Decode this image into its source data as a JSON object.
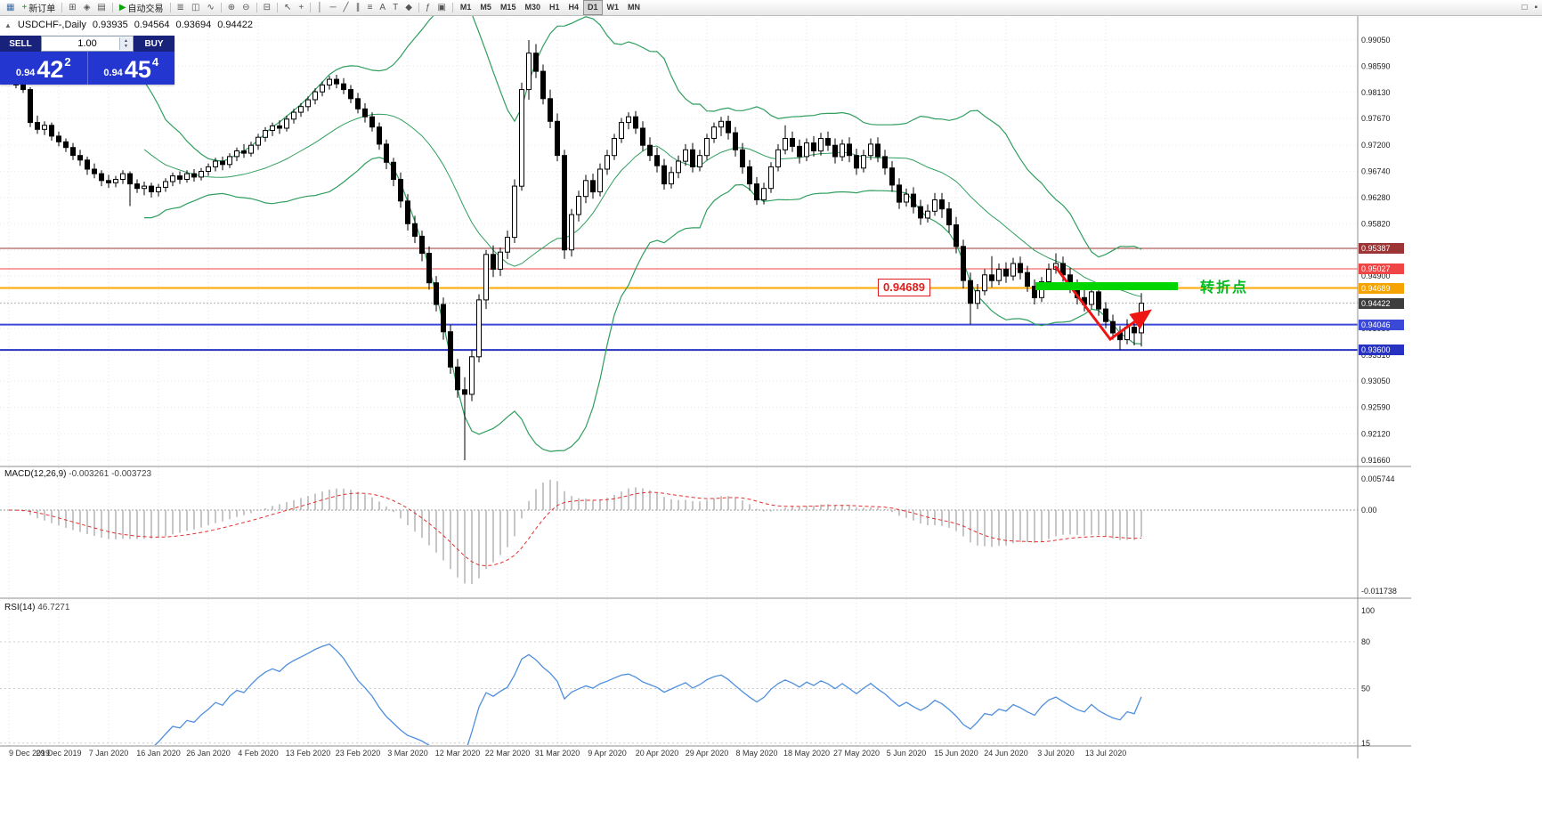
{
  "toolbar": {
    "items": [
      {
        "name": "app-icon",
        "glyph": "▦",
        "glyph_color": "#3a6ea5",
        "type": "icon"
      },
      {
        "name": "new-order-button",
        "glyph": "+",
        "glyph_color": "#0ca00c",
        "label": "新订单",
        "type": "button"
      },
      {
        "type": "sep"
      },
      {
        "name": "charts-grid-button",
        "glyph": "⊞",
        "type": "button"
      },
      {
        "name": "navigator-button",
        "glyph": "◈",
        "type": "button"
      },
      {
        "name": "terminal-button",
        "glyph": "▤",
        "type": "button"
      },
      {
        "type": "sep"
      },
      {
        "name": "auto-trading-button",
        "glyph": "▶",
        "glyph_color": "#0ca00c",
        "label": "自动交易",
        "type": "button"
      },
      {
        "type": "sep"
      },
      {
        "name": "bar-chart-button",
        "glyph": "≣",
        "type": "button"
      },
      {
        "name": "candlestick-chart-button",
        "glyph": "◫",
        "type": "button"
      },
      {
        "name": "line-chart-button",
        "glyph": "∿",
        "type": "button"
      },
      {
        "type": "sep"
      },
      {
        "name": "zoom-in-button",
        "glyph": "⊕",
        "type": "button"
      },
      {
        "name": "zoom-out-button",
        "glyph": "⊖",
        "type": "button"
      },
      {
        "type": "sep"
      },
      {
        "name": "tile-windows-button",
        "glyph": "⊟",
        "type": "button"
      },
      {
        "type": "sep"
      },
      {
        "name": "cursor-button",
        "glyph": "↖",
        "type": "button"
      },
      {
        "name": "crosshair-button",
        "glyph": "+",
        "type": "button"
      },
      {
        "type": "sep"
      },
      {
        "name": "vertical-line-button",
        "glyph": "│",
        "type": "button"
      },
      {
        "name": "horizontal-line-button",
        "glyph": "─",
        "type": "button"
      },
      {
        "name": "trendline-button",
        "glyph": "╱",
        "type": "button"
      },
      {
        "name": "channel-button",
        "glyph": "∥",
        "type": "button"
      },
      {
        "name": "fibonacci-button",
        "glyph": "≡",
        "type": "button"
      },
      {
        "name": "text-button",
        "glyph": "A",
        "type": "button"
      },
      {
        "name": "label-button",
        "glyph": "T",
        "type": "button"
      },
      {
        "name": "shapes-button",
        "glyph": "◆",
        "type": "button"
      },
      {
        "type": "sep"
      },
      {
        "name": "indicators-button",
        "glyph": "ƒ",
        "type": "button"
      },
      {
        "name": "templates-button",
        "glyph": "▣",
        "type": "button"
      },
      {
        "type": "sep"
      }
    ],
    "timeframes": [
      "M1",
      "M5",
      "M15",
      "M30",
      "H1",
      "H4",
      "D1",
      "W1",
      "MN"
    ],
    "active_timeframe": "D1",
    "right_items": [
      {
        "name": "window-list-button",
        "glyph": "□"
      },
      {
        "name": "toggle-panel-button",
        "glyph": "▪"
      }
    ]
  },
  "symbol_info": {
    "collapse_icon": "▲",
    "symbol_period": "USDCHF-,Daily",
    "open": "0.93935",
    "high": "0.94564",
    "low": "0.93694",
    "close": "0.94422"
  },
  "trade_panel": {
    "sell_label": "SELL",
    "buy_label": "BUY",
    "volume": "1.00",
    "spin_up": "▲",
    "spin_down": "▼",
    "sell_price_prefix": "0.94",
    "sell_price_big": "42",
    "sell_price_sup": "2",
    "buy_price_prefix": "0.94",
    "buy_price_big": "45",
    "buy_price_sup": "4"
  },
  "indicator_labels": {
    "macd_name": "MACD(12,26,9)",
    "macd_values": "-0.003261 -0.003723",
    "rsi_name": "RSI(14)",
    "rsi_value": "46.7271"
  },
  "annotations": {
    "level_label": "0.94689",
    "turning_point_label": "转折点"
  },
  "chart_data": {
    "type": "candlestick",
    "symbol": "USDCHF-",
    "period": "Daily",
    "colors": {
      "bollinger": "#2f9e5e",
      "bull": "#ffffff",
      "bear": "#000000",
      "macd_hist": "#b8b8b8",
      "macd_signal": "#e23030",
      "rsi": "#4f8fde",
      "arrow": "#ee1515",
      "green_zone": "#00d500",
      "green_zone_text": "#00bb22"
    },
    "price_ticks": [
      "0.99050",
      "0.98590",
      "0.98130",
      "0.97670",
      "0.97200",
      "0.96740",
      "0.96280",
      "0.95820",
      "0.95360",
      "0.94900",
      "0.94440",
      "0.93980",
      "0.93510",
      "0.93050",
      "0.92590",
      "0.92120",
      "0.91660"
    ],
    "macd_axis": [
      "0.005744",
      "0.00",
      "-0.011738"
    ],
    "rsi_axis": [
      "100",
      "80",
      "50",
      "15"
    ],
    "rsi_levels": [
      80,
      50,
      15
    ],
    "date_ticks": [
      "9 Dec 2019",
      "29 Dec 2019",
      "7 Jan 2020",
      "16 Jan 2020",
      "26 Jan 2020",
      "4 Feb 2020",
      "13 Feb 2020",
      "23 Feb 2020",
      "3 Mar 2020",
      "12 Mar 2020",
      "22 Mar 2020",
      "31 Mar 2020",
      "9 Apr 2020",
      "20 Apr 2020",
      "29 Apr 2020",
      "8 May 2020",
      "18 May 2020",
      "27 May 2020",
      "5 Jun 2020",
      "15 Jun 2020",
      "24 Jun 2020",
      "3 Jul 2020",
      "13 Jul 2020"
    ],
    "hlines": [
      {
        "name": "resistance-level-1",
        "price": 0.95387,
        "label": "0.95387",
        "color": "#9c3535",
        "width": 1
      },
      {
        "name": "resistance-level-2",
        "price": 0.95027,
        "label": "0.95027",
        "color": "#f04545",
        "width": 1
      },
      {
        "name": "key-level",
        "price": 0.94689,
        "label": "0.94689",
        "color": "#f5a300",
        "line_color": "#ffaa00",
        "width": 2
      },
      {
        "name": "current-price",
        "price": 0.94422,
        "label": "0.94422",
        "color": "#3d3d3d",
        "line_color": "#b4b4b4",
        "width": 1,
        "dash": "2,2"
      },
      {
        "name": "support-level-1",
        "price": 0.94046,
        "label": "0.94046",
        "color": "#3b49d6",
        "width": 2
      },
      {
        "name": "support-level-2",
        "price": 0.936,
        "label": "0.93600",
        "color": "#2733c0",
        "width": 2
      }
    ],
    "bollinger": {
      "period": 20,
      "deviation": 2
    },
    "candles": [
      [
        0.9838,
        0.9848,
        0.9828,
        0.9835
      ],
      [
        0.9835,
        0.9842,
        0.982,
        0.9826
      ],
      [
        0.9826,
        0.9835,
        0.9812,
        0.9818
      ],
      [
        0.9818,
        0.9822,
        0.9752,
        0.976
      ],
      [
        0.976,
        0.9772,
        0.974,
        0.9748
      ],
      [
        0.9748,
        0.9762,
        0.9738,
        0.9755
      ],
      [
        0.9755,
        0.976,
        0.9728,
        0.9736
      ],
      [
        0.9736,
        0.9744,
        0.9718,
        0.9726
      ],
      [
        0.9726,
        0.9732,
        0.9708,
        0.9716
      ],
      [
        0.9716,
        0.9724,
        0.9694,
        0.9702
      ],
      [
        0.9702,
        0.9712,
        0.9684,
        0.9694
      ],
      [
        0.9694,
        0.97,
        0.9668,
        0.9678
      ],
      [
        0.9678,
        0.9688,
        0.9662,
        0.967
      ],
      [
        0.967,
        0.9676,
        0.9648,
        0.9658
      ],
      [
        0.9658,
        0.9668,
        0.9645,
        0.9654
      ],
      [
        0.9654,
        0.9666,
        0.9646,
        0.966
      ],
      [
        0.966,
        0.9676,
        0.9652,
        0.967
      ],
      [
        0.967,
        0.9674,
        0.9613,
        0.9652
      ],
      [
        0.9652,
        0.966,
        0.9636,
        0.9644
      ],
      [
        0.9644,
        0.9656,
        0.9632,
        0.9648
      ],
      [
        0.9648,
        0.9654,
        0.9628,
        0.9638
      ],
      [
        0.9638,
        0.9652,
        0.963,
        0.9646
      ],
      [
        0.9646,
        0.9662,
        0.9638,
        0.9656
      ],
      [
        0.9656,
        0.9672,
        0.9648,
        0.9666
      ],
      [
        0.9666,
        0.9674,
        0.9652,
        0.966
      ],
      [
        0.966,
        0.9676,
        0.9654,
        0.967
      ],
      [
        0.967,
        0.9678,
        0.9656,
        0.9664
      ],
      [
        0.9664,
        0.968,
        0.9658,
        0.9674
      ],
      [
        0.9674,
        0.9688,
        0.9666,
        0.9682
      ],
      [
        0.9682,
        0.9698,
        0.9674,
        0.9692
      ],
      [
        0.9692,
        0.97,
        0.9676,
        0.9686
      ],
      [
        0.9686,
        0.9706,
        0.968,
        0.97
      ],
      [
        0.97,
        0.9716,
        0.9692,
        0.971
      ],
      [
        0.971,
        0.9722,
        0.9698,
        0.9706
      ],
      [
        0.9706,
        0.9726,
        0.97,
        0.972
      ],
      [
        0.972,
        0.974,
        0.9712,
        0.9734
      ],
      [
        0.9734,
        0.9752,
        0.9726,
        0.9746
      ],
      [
        0.9746,
        0.976,
        0.9736,
        0.9754
      ],
      [
        0.9754,
        0.9764,
        0.974,
        0.975
      ],
      [
        0.975,
        0.9772,
        0.9744,
        0.9766
      ],
      [
        0.9766,
        0.9784,
        0.9758,
        0.9778
      ],
      [
        0.9778,
        0.9794,
        0.977,
        0.9788
      ],
      [
        0.9788,
        0.9806,
        0.978,
        0.98
      ],
      [
        0.98,
        0.982,
        0.9792,
        0.9814
      ],
      [
        0.9814,
        0.9832,
        0.9806,
        0.9826
      ],
      [
        0.9826,
        0.9842,
        0.9818,
        0.9836
      ],
      [
        0.9836,
        0.9844,
        0.982,
        0.9828
      ],
      [
        0.9828,
        0.9838,
        0.981,
        0.9818
      ],
      [
        0.9818,
        0.9826,
        0.9794,
        0.9802
      ],
      [
        0.9802,
        0.9812,
        0.9776,
        0.9784
      ],
      [
        0.9784,
        0.9794,
        0.976,
        0.977
      ],
      [
        0.977,
        0.9778,
        0.9744,
        0.9752
      ],
      [
        0.9752,
        0.976,
        0.9712,
        0.9722
      ],
      [
        0.9722,
        0.973,
        0.9678,
        0.969
      ],
      [
        0.969,
        0.9698,
        0.9648,
        0.966
      ],
      [
        0.966,
        0.9672,
        0.961,
        0.9622
      ],
      [
        0.9622,
        0.9634,
        0.957,
        0.9582
      ],
      [
        0.9582,
        0.9596,
        0.9548,
        0.956
      ],
      [
        0.956,
        0.957,
        0.9516,
        0.953
      ],
      [
        0.953,
        0.9542,
        0.9466,
        0.9478
      ],
      [
        0.9478,
        0.949,
        0.9428,
        0.944
      ],
      [
        0.944,
        0.9452,
        0.9378,
        0.9392
      ],
      [
        0.9392,
        0.9404,
        0.9318,
        0.933
      ],
      [
        0.933,
        0.9344,
        0.9276,
        0.929
      ],
      [
        0.929,
        0.9312,
        0.9166,
        0.9282
      ],
      [
        0.9282,
        0.936,
        0.927,
        0.9348
      ],
      [
        0.9348,
        0.9458,
        0.9338,
        0.9448
      ],
      [
        0.9448,
        0.9536,
        0.9432,
        0.9528
      ],
      [
        0.9528,
        0.9544,
        0.9488,
        0.9502
      ],
      [
        0.9502,
        0.954,
        0.949,
        0.9532
      ],
      [
        0.9532,
        0.957,
        0.952,
        0.9558
      ],
      [
        0.9558,
        0.966,
        0.9548,
        0.9648
      ],
      [
        0.9648,
        0.983,
        0.964,
        0.9818
      ],
      [
        0.9818,
        0.9905,
        0.98,
        0.9882
      ],
      [
        0.9882,
        0.9898,
        0.9838,
        0.985
      ],
      [
        0.985,
        0.9862,
        0.9792,
        0.9802
      ],
      [
        0.9802,
        0.9818,
        0.975,
        0.9762
      ],
      [
        0.9762,
        0.9776,
        0.9692,
        0.9702
      ],
      [
        0.9702,
        0.9712,
        0.952,
        0.9536
      ],
      [
        0.9536,
        0.9608,
        0.9524,
        0.9598
      ],
      [
        0.9598,
        0.964,
        0.9586,
        0.963
      ],
      [
        0.963,
        0.9668,
        0.9618,
        0.9658
      ],
      [
        0.9658,
        0.967,
        0.9626,
        0.9638
      ],
      [
        0.9638,
        0.9688,
        0.963,
        0.9678
      ],
      [
        0.9678,
        0.9712,
        0.9668,
        0.9702
      ],
      [
        0.9702,
        0.974,
        0.9694,
        0.9732
      ],
      [
        0.9732,
        0.9768,
        0.9724,
        0.976
      ],
      [
        0.976,
        0.9778,
        0.9748,
        0.977
      ],
      [
        0.977,
        0.978,
        0.974,
        0.975
      ],
      [
        0.975,
        0.9762,
        0.971,
        0.972
      ],
      [
        0.972,
        0.9734,
        0.9692,
        0.9702
      ],
      [
        0.9702,
        0.9716,
        0.9672,
        0.9684
      ],
      [
        0.9684,
        0.9696,
        0.9642,
        0.9652
      ],
      [
        0.9652,
        0.9682,
        0.9644,
        0.9672
      ],
      [
        0.9672,
        0.9702,
        0.9662,
        0.9692
      ],
      [
        0.9692,
        0.9722,
        0.9684,
        0.9712
      ],
      [
        0.9712,
        0.9724,
        0.9672,
        0.9682
      ],
      [
        0.9682,
        0.9712,
        0.9674,
        0.9702
      ],
      [
        0.9702,
        0.974,
        0.9694,
        0.9732
      ],
      [
        0.9732,
        0.976,
        0.9724,
        0.9752
      ],
      [
        0.9752,
        0.977,
        0.9736,
        0.9762
      ],
      [
        0.9762,
        0.9772,
        0.973,
        0.9742
      ],
      [
        0.9742,
        0.9752,
        0.97,
        0.9712
      ],
      [
        0.9712,
        0.9724,
        0.967,
        0.9682
      ],
      [
        0.9682,
        0.9694,
        0.964,
        0.9652
      ],
      [
        0.9652,
        0.9664,
        0.9615,
        0.9624
      ],
      [
        0.9624,
        0.9654,
        0.9616,
        0.9644
      ],
      [
        0.9644,
        0.969,
        0.9636,
        0.9682
      ],
      [
        0.9682,
        0.9722,
        0.9674,
        0.9712
      ],
      [
        0.9712,
        0.9755,
        0.9704,
        0.9732
      ],
      [
        0.9732,
        0.9744,
        0.9708,
        0.9718
      ],
      [
        0.9718,
        0.973,
        0.9688,
        0.97
      ],
      [
        0.97,
        0.9732,
        0.9692,
        0.9724
      ],
      [
        0.9724,
        0.9736,
        0.97,
        0.971
      ],
      [
        0.971,
        0.9742,
        0.9702,
        0.9732
      ],
      [
        0.9732,
        0.9744,
        0.971,
        0.972
      ],
      [
        0.972,
        0.9732,
        0.9688,
        0.97
      ],
      [
        0.97,
        0.973,
        0.9692,
        0.9722
      ],
      [
        0.9722,
        0.9734,
        0.969,
        0.9702
      ],
      [
        0.9702,
        0.9714,
        0.9668,
        0.968
      ],
      [
        0.968,
        0.9712,
        0.9672,
        0.9702
      ],
      [
        0.9702,
        0.9732,
        0.9694,
        0.9722
      ],
      [
        0.9722,
        0.9734,
        0.969,
        0.97
      ],
      [
        0.97,
        0.9712,
        0.9668,
        0.968
      ],
      [
        0.968,
        0.9692,
        0.9638,
        0.965
      ],
      [
        0.965,
        0.9662,
        0.9608,
        0.962
      ],
      [
        0.962,
        0.9644,
        0.9612,
        0.9634
      ],
      [
        0.9634,
        0.9646,
        0.96,
        0.9612
      ],
      [
        0.9612,
        0.9624,
        0.958,
        0.9592
      ],
      [
        0.9592,
        0.9616,
        0.9584,
        0.9604
      ],
      [
        0.9604,
        0.9636,
        0.9596,
        0.9624
      ],
      [
        0.9624,
        0.9636,
        0.9592,
        0.9608
      ],
      [
        0.9608,
        0.962,
        0.9566,
        0.958
      ],
      [
        0.958,
        0.9594,
        0.953,
        0.9542
      ],
      [
        0.9542,
        0.9554,
        0.9468,
        0.9482
      ],
      [
        0.9482,
        0.9496,
        0.9405,
        0.9442
      ],
      [
        0.9442,
        0.9476,
        0.9432,
        0.9464
      ],
      [
        0.9464,
        0.9502,
        0.9456,
        0.9492
      ],
      [
        0.9492,
        0.9525,
        0.947,
        0.9482
      ],
      [
        0.9482,
        0.9512,
        0.9474,
        0.9502
      ],
      [
        0.9502,
        0.9514,
        0.9478,
        0.949
      ],
      [
        0.949,
        0.9522,
        0.9482,
        0.9512
      ],
      [
        0.9512,
        0.9524,
        0.9484,
        0.9496
      ],
      [
        0.9496,
        0.9508,
        0.9462,
        0.9472
      ],
      [
        0.9472,
        0.9484,
        0.944,
        0.9452
      ],
      [
        0.9452,
        0.9488,
        0.9444,
        0.948
      ],
      [
        0.948,
        0.9512,
        0.9472,
        0.9502
      ],
      [
        0.9502,
        0.953,
        0.9494,
        0.9512
      ],
      [
        0.9512,
        0.9524,
        0.948,
        0.9492
      ],
      [
        0.9492,
        0.9504,
        0.946,
        0.9472
      ],
      [
        0.9472,
        0.9484,
        0.944,
        0.9452
      ],
      [
        0.9452,
        0.9466,
        0.9428,
        0.944
      ],
      [
        0.944,
        0.9472,
        0.9432,
        0.9462
      ],
      [
        0.9462,
        0.9474,
        0.942,
        0.9432
      ],
      [
        0.9432,
        0.9444,
        0.9398,
        0.941
      ],
      [
        0.941,
        0.9422,
        0.9378,
        0.939
      ],
      [
        0.939,
        0.9402,
        0.936,
        0.9378
      ],
      [
        0.9378,
        0.9414,
        0.937,
        0.94
      ],
      [
        0.94,
        0.9412,
        0.9368,
        0.939
      ],
      [
        0.939,
        0.946,
        0.9366,
        0.9442
      ]
    ]
  }
}
